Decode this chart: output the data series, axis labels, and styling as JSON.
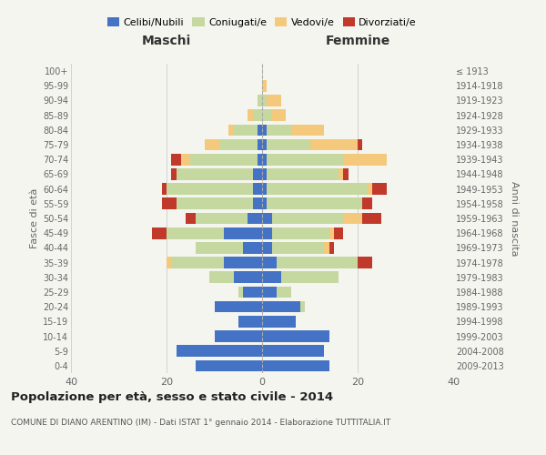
{
  "age_groups": [
    "0-4",
    "5-9",
    "10-14",
    "15-19",
    "20-24",
    "25-29",
    "30-34",
    "35-39",
    "40-44",
    "45-49",
    "50-54",
    "55-59",
    "60-64",
    "65-69",
    "70-74",
    "75-79",
    "80-84",
    "85-89",
    "90-94",
    "95-99",
    "100+"
  ],
  "birth_years": [
    "2009-2013",
    "2004-2008",
    "1999-2003",
    "1994-1998",
    "1989-1993",
    "1984-1988",
    "1979-1983",
    "1974-1978",
    "1969-1973",
    "1964-1968",
    "1959-1963",
    "1954-1958",
    "1949-1953",
    "1944-1948",
    "1939-1943",
    "1934-1938",
    "1929-1933",
    "1924-1928",
    "1919-1923",
    "1914-1918",
    "≤ 1913"
  ],
  "maschi": {
    "celibi": [
      14,
      18,
      10,
      5,
      10,
      4,
      6,
      8,
      4,
      8,
      3,
      2,
      2,
      2,
      1,
      1,
      1,
      0,
      0,
      0,
      0
    ],
    "coniugati": [
      0,
      0,
      0,
      0,
      0,
      1,
      5,
      11,
      10,
      12,
      11,
      16,
      18,
      16,
      14,
      8,
      5,
      2,
      1,
      0,
      0
    ],
    "vedovi": [
      0,
      0,
      0,
      0,
      0,
      0,
      0,
      1,
      0,
      0,
      0,
      0,
      0,
      0,
      2,
      3,
      1,
      1,
      0,
      0,
      0
    ],
    "divorziati": [
      0,
      0,
      0,
      0,
      0,
      0,
      0,
      0,
      0,
      3,
      2,
      3,
      1,
      1,
      2,
      0,
      0,
      0,
      0,
      0,
      0
    ]
  },
  "femmine": {
    "nubili": [
      14,
      13,
      14,
      7,
      8,
      3,
      4,
      3,
      2,
      2,
      2,
      1,
      1,
      1,
      1,
      1,
      1,
      0,
      0,
      0,
      0
    ],
    "coniugate": [
      0,
      0,
      0,
      0,
      1,
      3,
      12,
      17,
      11,
      12,
      15,
      20,
      21,
      15,
      16,
      9,
      5,
      2,
      1,
      0,
      0
    ],
    "vedove": [
      0,
      0,
      0,
      0,
      0,
      0,
      0,
      0,
      1,
      1,
      4,
      0,
      1,
      1,
      9,
      10,
      7,
      3,
      3,
      1,
      0
    ],
    "divorziate": [
      0,
      0,
      0,
      0,
      0,
      0,
      0,
      3,
      1,
      2,
      4,
      2,
      3,
      1,
      0,
      1,
      0,
      0,
      0,
      0,
      0
    ]
  },
  "colors": {
    "celibi": "#4472C4",
    "coniugati": "#c5d8a0",
    "vedovi": "#f5c97c",
    "divorziati": "#c0392b"
  },
  "title": "Popolazione per età, sesso e stato civile - 2014",
  "subtitle": "COMUNE DI DIANO ARENTINO (IM) - Dati ISTAT 1° gennaio 2014 - Elaborazione TUTTITALIA.IT",
  "xlabel_left": "Maschi",
  "xlabel_right": "Femmine",
  "ylabel_left": "Fasce di età",
  "ylabel_right": "Anni di nascita",
  "xlim": 40,
  "bg_color": "#f5f5f0",
  "grid_color": "#cccccc"
}
